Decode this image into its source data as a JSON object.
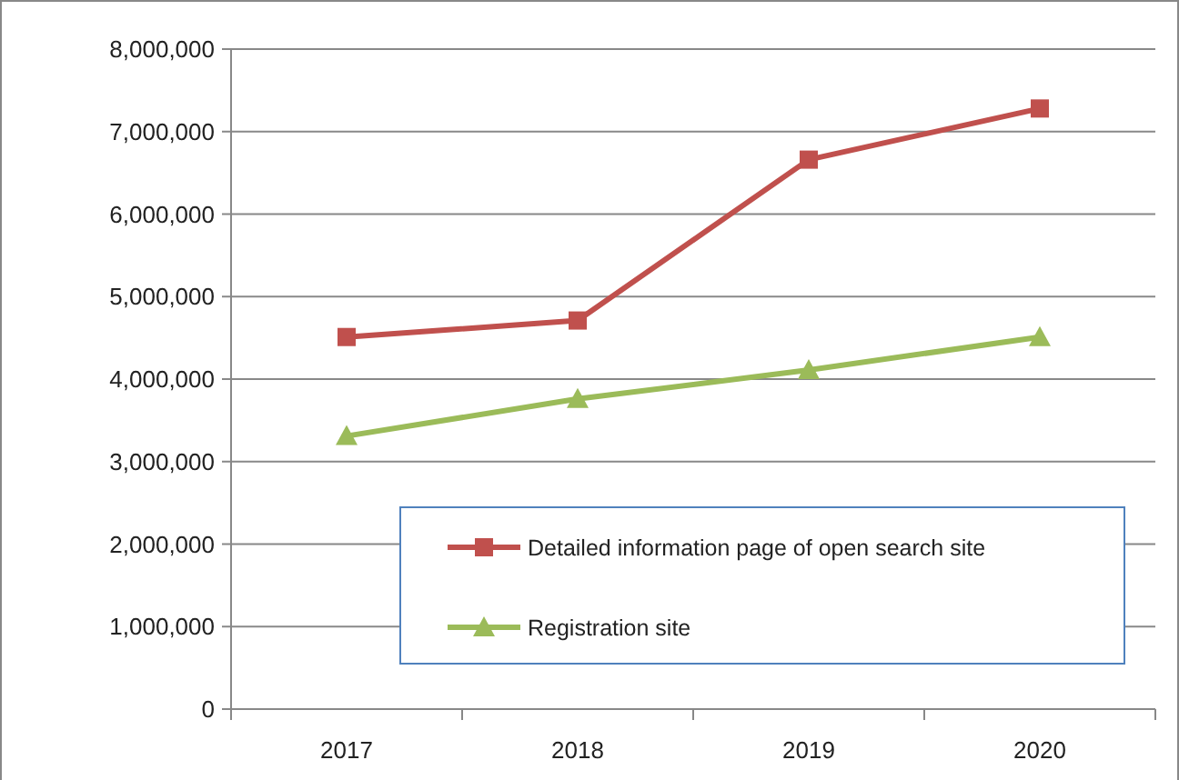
{
  "chart_data": {
    "type": "line",
    "categories": [
      "2017",
      "2018",
      "2019",
      "2020"
    ],
    "series": [
      {
        "name": "Detailed information page of open search site",
        "color": "#c0504d",
        "marker": "square",
        "values": [
          4510000,
          4710000,
          6660000,
          7280000
        ]
      },
      {
        "name": "Registration site",
        "color": "#9bbb59",
        "marker": "triangle",
        "values": [
          3310000,
          3760000,
          4110000,
          4510000
        ]
      }
    ],
    "ylim": [
      0,
      8000000
    ],
    "yticks": [
      {
        "value": 0,
        "label": "0"
      },
      {
        "value": 1000000,
        "label": "1,000,000"
      },
      {
        "value": 2000000,
        "label": "2,000,000"
      },
      {
        "value": 3000000,
        "label": "3,000,000"
      },
      {
        "value": 4000000,
        "label": "4,000,000"
      },
      {
        "value": 5000000,
        "label": "5,000,000"
      },
      {
        "value": 6000000,
        "label": "6,000,000"
      },
      {
        "value": 7000000,
        "label": "7,000,000"
      },
      {
        "value": 8000000,
        "label": "8,000,000"
      }
    ],
    "grid": "y",
    "legend": "bottom right"
  }
}
